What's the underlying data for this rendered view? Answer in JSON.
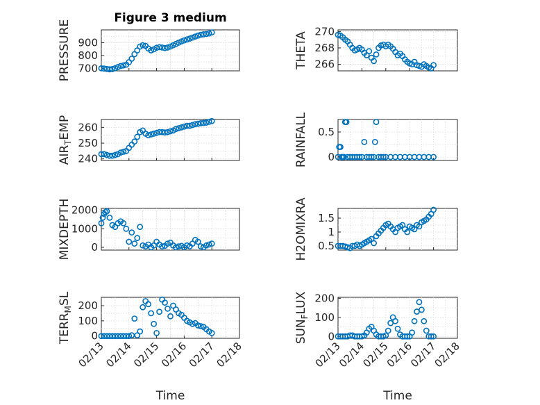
{
  "figure_title": "Figure 3 medium",
  "colors": {
    "marker": "#0072BD",
    "axes": "#262626",
    "grid": "#d9d9d9"
  },
  "chart_data": [
    {
      "type": "scatter",
      "panel": "pressure",
      "title": "Figure 3 medium",
      "ylabel": "PRESSURE",
      "ylabel_parts": [
        "PRESSURE"
      ],
      "xlabel": "",
      "ylim": [
        680,
        1000
      ],
      "yticks": [
        700,
        800,
        900
      ],
      "ytick_labels": [
        "700",
        "800",
        "900"
      ],
      "xlim": [
        0,
        5
      ],
      "xticks": [
        0,
        1,
        2,
        3,
        4,
        5
      ],
      "xtick_labels": [],
      "grid": true,
      "x": [
        0.0,
        0.1,
        0.2,
        0.3,
        0.4,
        0.5,
        0.6,
        0.7,
        0.8,
        0.9,
        1.0,
        1.1,
        1.2,
        1.3,
        1.4,
        1.5,
        1.6,
        1.7,
        1.8,
        1.9,
        2.0,
        2.1,
        2.2,
        2.3,
        2.4,
        2.5,
        2.6,
        2.7,
        2.8,
        2.9,
        3.0,
        3.1,
        3.2,
        3.3,
        3.4,
        3.5,
        3.6,
        3.7,
        3.8,
        3.9,
        4.0
      ],
      "y": [
        700,
        698,
        695,
        692,
        694,
        700,
        710,
        718,
        722,
        728,
        748,
        775,
        810,
        840,
        870,
        880,
        875,
        855,
        840,
        848,
        860,
        865,
        862,
        858,
        862,
        870,
        880,
        890,
        900,
        910,
        918,
        925,
        932,
        940,
        948,
        955,
        962,
        965,
        968,
        972,
        980
      ]
    },
    {
      "type": "scatter",
      "panel": "theta",
      "ylabel": "THETA",
      "ylabel_parts": [
        "THETA"
      ],
      "xlabel": "",
      "ylim": [
        265.2,
        270.2
      ],
      "yticks": [
        266,
        268,
        270
      ],
      "ytick_labels": [
        "266",
        "268",
        "270"
      ],
      "xlim": [
        0,
        5
      ],
      "xticks": [
        0,
        1,
        2,
        3,
        4,
        5
      ],
      "xtick_labels": [],
      "grid": true,
      "x": [
        0.0,
        0.1,
        0.2,
        0.3,
        0.4,
        0.5,
        0.6,
        0.7,
        0.8,
        0.9,
        1.0,
        1.1,
        1.2,
        1.3,
        1.4,
        1.5,
        1.6,
        1.7,
        1.8,
        1.9,
        2.0,
        2.1,
        2.2,
        2.3,
        2.4,
        2.5,
        2.6,
        2.7,
        2.8,
        2.9,
        3.0,
        3.1,
        3.2,
        3.3,
        3.4,
        3.5,
        3.6,
        3.7,
        3.8,
        3.9,
        4.0
      ],
      "y": [
        269.6,
        269.5,
        269.3,
        269.0,
        268.8,
        268.4,
        268.0,
        267.7,
        267.8,
        268.0,
        267.8,
        267.4,
        267.1,
        267.6,
        266.8,
        266.4,
        267.2,
        268.0,
        268.3,
        268.4,
        268.2,
        268.4,
        268.2,
        267.9,
        267.5,
        267.1,
        267.3,
        267.0,
        266.6,
        266.3,
        266.1,
        266.0,
        266.3,
        265.9,
        265.8,
        265.7,
        266.0,
        265.8,
        265.6,
        265.5,
        265.9
      ]
    },
    {
      "type": "scatter",
      "panel": "air_temp",
      "ylabel": "AIR_TEMP",
      "ylabel_parts": [
        "AIR",
        "T",
        "EMP"
      ],
      "xlabel": "",
      "ylim": [
        239,
        265
      ],
      "yticks": [
        240,
        250,
        260
      ],
      "ytick_labels": [
        "240",
        "250",
        "260"
      ],
      "xlim": [
        0,
        5
      ],
      "xticks": [
        0,
        1,
        2,
        3,
        4,
        5
      ],
      "xtick_labels": [],
      "grid": true,
      "x": [
        0.0,
        0.1,
        0.2,
        0.3,
        0.4,
        0.5,
        0.6,
        0.7,
        0.8,
        0.9,
        1.0,
        1.1,
        1.2,
        1.3,
        1.4,
        1.5,
        1.6,
        1.7,
        1.8,
        1.9,
        2.0,
        2.1,
        2.2,
        2.3,
        2.4,
        2.5,
        2.6,
        2.7,
        2.8,
        2.9,
        3.0,
        3.1,
        3.2,
        3.3,
        3.4,
        3.5,
        3.6,
        3.7,
        3.8,
        3.9,
        4.0
      ],
      "y": [
        243,
        243,
        242.5,
        242,
        242,
        242.5,
        243,
        244,
        244.5,
        245,
        247,
        249,
        251,
        254,
        257,
        258,
        256,
        255,
        255.5,
        256,
        256.5,
        257,
        257,
        256.8,
        257,
        257.5,
        258,
        259,
        259.5,
        260,
        260.5,
        261,
        261,
        261.5,
        262,
        262.3,
        262.6,
        262.8,
        263,
        263.5,
        264
      ]
    },
    {
      "type": "scatter",
      "panel": "rainfall",
      "ylabel": "RAINFALL",
      "ylabel_parts": [
        "RAINFALL"
      ],
      "xlabel": "",
      "ylim": [
        -0.07,
        0.75
      ],
      "yticks": [
        0,
        0.5
      ],
      "ytick_labels": [
        "0",
        "0.5"
      ],
      "xlim": [
        0,
        5
      ],
      "xticks": [
        0,
        1,
        2,
        3,
        4,
        5
      ],
      "xtick_labels": [],
      "grid": true,
      "x": [
        0.0,
        0.05,
        0.1,
        0.15,
        0.2,
        0.25,
        0.3,
        0.35,
        0.4,
        0.5,
        0.6,
        0.7,
        0.8,
        0.9,
        1.0,
        1.1,
        1.2,
        1.3,
        1.4,
        1.5,
        1.55,
        1.6,
        1.7,
        1.8,
        1.9,
        2.0,
        2.2,
        2.4,
        2.6,
        2.8,
        3.0,
        3.2,
        3.4,
        3.6,
        3.8,
        4.0
      ],
      "y": [
        0,
        0.2,
        0.2,
        0,
        0,
        0,
        0.7,
        0.7,
        0,
        0,
        0,
        0,
        0,
        0,
        0,
        0.3,
        0,
        0,
        0,
        0,
        0.3,
        0.7,
        0,
        0,
        0,
        0,
        0,
        0,
        0,
        0,
        0,
        0,
        0,
        0,
        0,
        0
      ]
    },
    {
      "type": "scatter",
      "panel": "mixdepth",
      "ylabel": "MIXDEPTH",
      "ylabel_parts": [
        "MIXDEPTH"
      ],
      "xlabel": "",
      "ylim": [
        -150,
        2100
      ],
      "yticks": [
        0,
        1000,
        2000
      ],
      "ytick_labels": [
        "0",
        "1000",
        "2000"
      ],
      "xlim": [
        0,
        5
      ],
      "xticks": [
        0,
        1,
        2,
        3,
        4,
        5
      ],
      "xtick_labels": [],
      "grid": true,
      "x": [
        0.0,
        0.05,
        0.1,
        0.15,
        0.2,
        0.3,
        0.4,
        0.5,
        0.6,
        0.7,
        0.8,
        0.9,
        1.0,
        1.1,
        1.2,
        1.3,
        1.4,
        1.5,
        1.6,
        1.7,
        1.8,
        1.9,
        2.0,
        2.1,
        2.2,
        2.3,
        2.4,
        2.5,
        2.6,
        2.7,
        2.8,
        2.9,
        3.0,
        3.1,
        3.2,
        3.3,
        3.4,
        3.5,
        3.6,
        3.7,
        3.8,
        3.9,
        4.0
      ],
      "y": [
        1300,
        1600,
        1800,
        1900,
        1950,
        1600,
        1200,
        1100,
        1300,
        1400,
        1300,
        1000,
        300,
        800,
        200,
        500,
        1100,
        100,
        50,
        150,
        0,
        100,
        300,
        150,
        50,
        80,
        200,
        250,
        100,
        0,
        50,
        80,
        0,
        100,
        50,
        200,
        400,
        300,
        50,
        0,
        100,
        150,
        200
      ]
    },
    {
      "type": "scatter",
      "panel": "h2omixra",
      "ylabel": "H2OMIXRA",
      "ylabel_parts": [
        "H2OMIXRA"
      ],
      "xlabel": "",
      "ylim": [
        0.35,
        1.85
      ],
      "yticks": [
        0.5,
        1,
        1.5
      ],
      "ytick_labels": [
        "0.5",
        "1",
        "1.5"
      ],
      "xlim": [
        0,
        5
      ],
      "xticks": [
        0,
        1,
        2,
        3,
        4,
        5
      ],
      "xtick_labels": [],
      "grid": true,
      "x": [
        0.0,
        0.1,
        0.2,
        0.3,
        0.4,
        0.5,
        0.6,
        0.7,
        0.8,
        0.9,
        1.0,
        1.1,
        1.2,
        1.3,
        1.4,
        1.5,
        1.6,
        1.7,
        1.8,
        1.9,
        2.0,
        2.1,
        2.2,
        2.3,
        2.4,
        2.5,
        2.6,
        2.7,
        2.8,
        2.9,
        3.0,
        3.1,
        3.2,
        3.3,
        3.4,
        3.5,
        3.6,
        3.7,
        3.8,
        3.9,
        4.0
      ],
      "y": [
        0.5,
        0.5,
        0.5,
        0.48,
        0.45,
        0.42,
        0.5,
        0.5,
        0.55,
        0.5,
        0.55,
        0.6,
        0.65,
        0.7,
        0.75,
        0.6,
        0.85,
        0.95,
        1.05,
        1.15,
        1.25,
        1.3,
        1.2,
        1.1,
        1.0,
        1.15,
        1.2,
        1.25,
        1.1,
        1.0,
        1.2,
        1.15,
        1.1,
        1.25,
        1.2,
        1.35,
        1.4,
        1.45,
        1.55,
        1.65,
        1.8
      ]
    },
    {
      "type": "scatter",
      "panel": "terr_msl",
      "ylabel": "TERR_MSL",
      "ylabel_parts": [
        "TERR",
        "M",
        "SL"
      ],
      "xlabel": "Time",
      "ylim": [
        -15,
        255
      ],
      "yticks": [
        0,
        100,
        200
      ],
      "ytick_labels": [
        "0",
        "100",
        "200"
      ],
      "xlim": [
        0,
        5
      ],
      "xticks": [
        0,
        1,
        2,
        3,
        4,
        5
      ],
      "xtick_labels": [
        "02/13",
        "02/14",
        "02/15",
        "02/16",
        "02/17",
        "02/18"
      ],
      "grid": true,
      "x": [
        0.0,
        0.1,
        0.2,
        0.3,
        0.4,
        0.5,
        0.6,
        0.7,
        0.8,
        0.9,
        1.0,
        1.1,
        1.2,
        1.3,
        1.4,
        1.5,
        1.6,
        1.7,
        1.8,
        1.9,
        2.0,
        2.1,
        2.2,
        2.3,
        2.4,
        2.5,
        2.6,
        2.7,
        2.8,
        2.9,
        3.0,
        3.1,
        3.2,
        3.3,
        3.4,
        3.5,
        3.6,
        3.7,
        3.8,
        3.9,
        4.0
      ],
      "y": [
        0,
        0,
        0,
        0,
        0,
        0,
        0,
        0,
        0,
        0,
        0,
        5,
        115,
        5,
        30,
        190,
        230,
        210,
        150,
        80,
        20,
        160,
        240,
        220,
        180,
        130,
        200,
        175,
        150,
        140,
        120,
        100,
        90,
        80,
        85,
        70,
        65,
        60,
        45,
        30,
        20
      ]
    },
    {
      "type": "scatter",
      "panel": "sun_flux",
      "ylabel": "SUN_FLUX",
      "ylabel_parts": [
        "SUN",
        "F",
        "LUX"
      ],
      "xlabel": "Time",
      "ylim": [
        -10,
        205
      ],
      "yticks": [
        0,
        100,
        200
      ],
      "ytick_labels": [
        "0",
        "100",
        "200"
      ],
      "xlim": [
        0,
        5
      ],
      "xticks": [
        0,
        1,
        2,
        3,
        4,
        5
      ],
      "xtick_labels": [
        "02/13",
        "02/14",
        "02/15",
        "02/16",
        "02/17",
        "02/18"
      ],
      "grid": true,
      "x": [
        0.0,
        0.1,
        0.2,
        0.3,
        0.4,
        0.5,
        0.6,
        0.7,
        0.8,
        0.9,
        1.0,
        1.1,
        1.2,
        1.3,
        1.4,
        1.5,
        1.6,
        1.7,
        1.8,
        1.9,
        2.0,
        2.1,
        2.2,
        2.3,
        2.4,
        2.5,
        2.6,
        2.7,
        2.8,
        2.9,
        3.0,
        3.1,
        3.2,
        3.3,
        3.4,
        3.5,
        3.6,
        3.7,
        3.8,
        3.9,
        4.0
      ],
      "y": [
        0,
        0,
        0,
        0,
        0,
        5,
        5,
        0,
        0,
        0,
        0,
        5,
        20,
        40,
        50,
        30,
        10,
        0,
        0,
        0,
        5,
        30,
        70,
        100,
        80,
        40,
        10,
        0,
        0,
        0,
        0,
        20,
        80,
        130,
        180,
        140,
        80,
        30,
        0,
        0,
        0
      ]
    }
  ]
}
